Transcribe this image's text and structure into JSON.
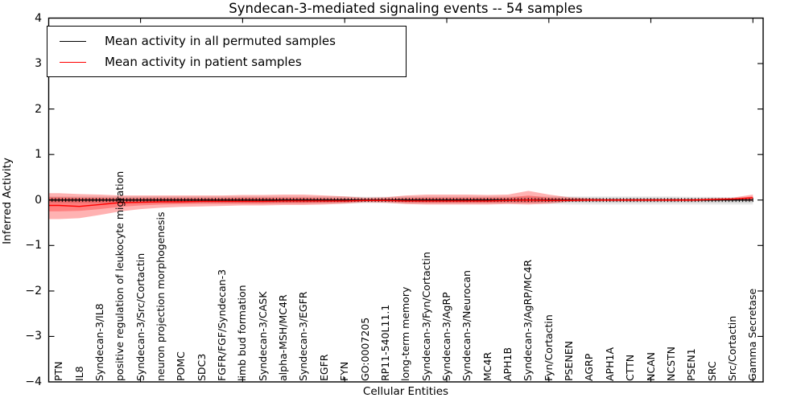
{
  "chart_data": {
    "type": "line",
    "title": "Syndecan-3-mediated signaling events -- 54 samples",
    "xlabel": "Cellular Entities",
    "ylabel": "Inferred Activity",
    "ylim": [
      -4,
      4
    ],
    "yticks": [
      4,
      3,
      2,
      1,
      0,
      -1,
      -2,
      -3,
      -4
    ],
    "grid": false,
    "legend_position": "upper left",
    "categories": [
      "PTN",
      "IL8",
      "Syndecan-3/IL8",
      "positive regulation of leukocyte migration",
      "Syndecan-3/Src/Cortactin",
      "neuron projection morphogenesis",
      "POMC",
      "SDC3",
      "FGFR/FGF/Syndecan-3",
      "limb bud formation",
      "Syndecan-3/CASK",
      "alpha-MSH/MC4R",
      "Syndecan-3/EGFR",
      "EGFR",
      "FYN",
      "GO:0007205",
      "RP11-540L11.1",
      "long-term memory",
      "Syndecan-3/Fyn/Cortactin",
      "Syndecan-3/AgRP",
      "Syndecan-3/Neurocan",
      "MC4R",
      "APH1B",
      "Syndecan-3/AgRP/MC4R",
      "Fyn/Cortactin",
      "PSENEN",
      "AGRP",
      "APH1A",
      "CTTN",
      "NCAN",
      "NCSTN",
      "PSEN1",
      "SRC",
      "Src/Cortactin",
      "Gamma Secretase"
    ],
    "series": [
      {
        "id": "permuted-mean",
        "name": "Mean activity in all permuted samples",
        "color": "#000000",
        "marker": "tick",
        "values": [
          0,
          0,
          0,
          0,
          0,
          0,
          0,
          0,
          0,
          0,
          0,
          0,
          0,
          0,
          0,
          0,
          0,
          0,
          0,
          0,
          0,
          0,
          0,
          0,
          0,
          0,
          0,
          0,
          0,
          0,
          0,
          0,
          0,
          0,
          0
        ],
        "band_outer": {
          "color": "rgba(130,130,130,0.18)",
          "upper": [
            0.08,
            0.08,
            0.08,
            0.08,
            0.08,
            0.08,
            0.08,
            0.08,
            0.08,
            0.08,
            0.08,
            0.08,
            0.08,
            0.08,
            0.08,
            0.07,
            0.07,
            0.08,
            0.08,
            0.08,
            0.08,
            0.08,
            0.08,
            0.08,
            0.08,
            0.08,
            0.08,
            0.08,
            0.08,
            0.08,
            0.08,
            0.07,
            0.07,
            0.06,
            0.06
          ],
          "lower": [
            -0.08,
            -0.08,
            -0.08,
            -0.08,
            -0.08,
            -0.08,
            -0.08,
            -0.08,
            -0.08,
            -0.08,
            -0.08,
            -0.08,
            -0.08,
            -0.08,
            -0.08,
            -0.07,
            -0.07,
            -0.08,
            -0.08,
            -0.08,
            -0.08,
            -0.08,
            -0.08,
            -0.08,
            -0.09,
            -0.1,
            -0.1,
            -0.1,
            -0.1,
            -0.1,
            -0.1,
            -0.1,
            -0.1,
            -0.1,
            -0.1
          ]
        },
        "band_inner": {
          "color": "rgba(130,130,130,0.18)",
          "upper": [
            0.05,
            0.05,
            0.05,
            0.05,
            0.05,
            0.05,
            0.05,
            0.05,
            0.05,
            0.05,
            0.05,
            0.05,
            0.05,
            0.05,
            0.05,
            0.04,
            0.04,
            0.05,
            0.05,
            0.05,
            0.05,
            0.05,
            0.05,
            0.05,
            0.05,
            0.05,
            0.05,
            0.05,
            0.05,
            0.05,
            0.05,
            0.04,
            0.04,
            0.03,
            0.03
          ],
          "lower": [
            -0.05,
            -0.05,
            -0.05,
            -0.05,
            -0.05,
            -0.05,
            -0.05,
            -0.05,
            -0.05,
            -0.05,
            -0.05,
            -0.05,
            -0.05,
            -0.05,
            -0.05,
            -0.04,
            -0.04,
            -0.05,
            -0.05,
            -0.05,
            -0.05,
            -0.05,
            -0.05,
            -0.05,
            -0.06,
            -0.06,
            -0.06,
            -0.06,
            -0.06,
            -0.06,
            -0.06,
            -0.06,
            -0.06,
            -0.06,
            -0.06
          ]
        }
      },
      {
        "id": "patient-mean",
        "name": "Mean activity in patient samples",
        "color": "#ff0000",
        "marker": null,
        "values": [
          -0.12,
          -0.14,
          -0.1,
          -0.06,
          -0.05,
          -0.04,
          -0.04,
          -0.03,
          -0.03,
          -0.03,
          -0.03,
          -0.02,
          -0.02,
          -0.02,
          -0.02,
          -0.01,
          -0.01,
          -0.02,
          -0.02,
          -0.02,
          -0.02,
          -0.02,
          -0.01,
          0,
          -0.01,
          -0.01,
          0,
          0,
          0,
          0,
          0,
          0,
          0.01,
          0.02,
          0.05
        ],
        "band_outer": {
          "color": "rgba(255,0,0,0.30)",
          "upper": [
            0.15,
            0.13,
            0.12,
            0.1,
            0.1,
            0.1,
            0.1,
            0.1,
            0.1,
            0.11,
            0.11,
            0.12,
            0.12,
            0.1,
            0.08,
            0.05,
            0.06,
            0.1,
            0.12,
            0.12,
            0.12,
            0.11,
            0.12,
            0.2,
            0.12,
            0.06,
            0.04,
            0.03,
            0.03,
            0.03,
            0.03,
            0.03,
            0.04,
            0.05,
            0.12
          ],
          "lower": [
            -0.42,
            -0.4,
            -0.33,
            -0.25,
            -0.2,
            -0.17,
            -0.15,
            -0.14,
            -0.13,
            -0.12,
            -0.12,
            -0.11,
            -0.11,
            -0.1,
            -0.08,
            -0.05,
            -0.06,
            -0.09,
            -0.1,
            -0.1,
            -0.1,
            -0.1,
            -0.09,
            -0.1,
            -0.08,
            -0.04,
            -0.03,
            -0.03,
            -0.03,
            -0.03,
            -0.03,
            -0.03,
            -0.02,
            -0.01,
            -0.02
          ]
        },
        "band_inner": {
          "color": "rgba(255,0,0,0.28)",
          "upper": [
            0.06,
            0.05,
            0.05,
            0.04,
            0.04,
            0.04,
            0.04,
            0.04,
            0.04,
            0.05,
            0.05,
            0.05,
            0.05,
            0.04,
            0.03,
            0.02,
            0.03,
            0.04,
            0.05,
            0.05,
            0.05,
            0.05,
            0.05,
            0.1,
            0.05,
            0.03,
            0.02,
            0.01,
            0.01,
            0.01,
            0.01,
            0.01,
            0.02,
            0.03,
            0.08
          ],
          "lower": [
            -0.25,
            -0.24,
            -0.2,
            -0.15,
            -0.12,
            -0.1,
            -0.09,
            -0.08,
            -0.08,
            -0.08,
            -0.08,
            -0.07,
            -0.07,
            -0.06,
            -0.05,
            -0.03,
            -0.03,
            -0.05,
            -0.06,
            -0.06,
            -0.06,
            -0.06,
            -0.05,
            -0.06,
            -0.04,
            -0.02,
            -0.02,
            -0.02,
            -0.02,
            -0.02,
            -0.02,
            -0.02,
            -0.01,
            0,
            0
          ]
        }
      }
    ]
  }
}
